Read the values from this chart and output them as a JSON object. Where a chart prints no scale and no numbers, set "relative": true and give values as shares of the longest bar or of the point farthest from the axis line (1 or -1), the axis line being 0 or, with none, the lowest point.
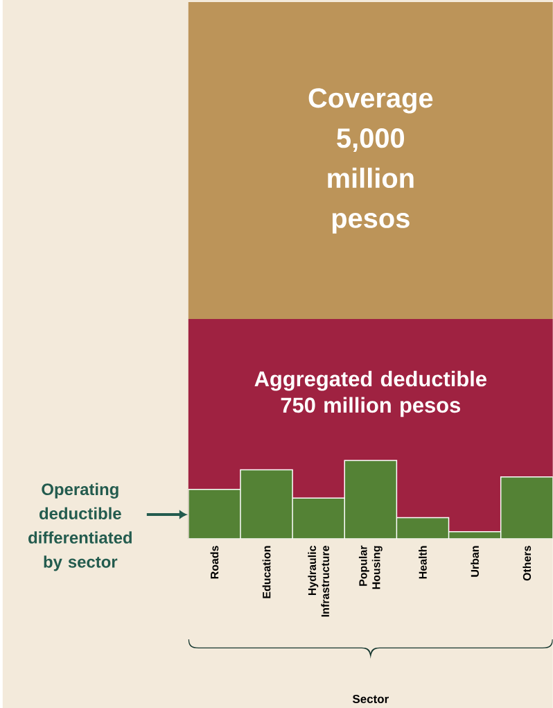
{
  "chart_data": {
    "type": "bar",
    "relative": true,
    "color": "#548235",
    "categories": [
      "Roads",
      "Education",
      "Hydraulic Infrastructure",
      "Popular Housing",
      "Health",
      "Urban",
      "Others"
    ],
    "values": [
      0.63,
      0.88,
      0.52,
      1,
      0.27,
      0.09,
      0.79
    ],
    "annotations": [
      "Coverage 5,000 million pesos",
      "Aggregated deductible 750 million pesos",
      "Operating deductible differentiated by sector",
      "Sector"
    ]
  }
}
